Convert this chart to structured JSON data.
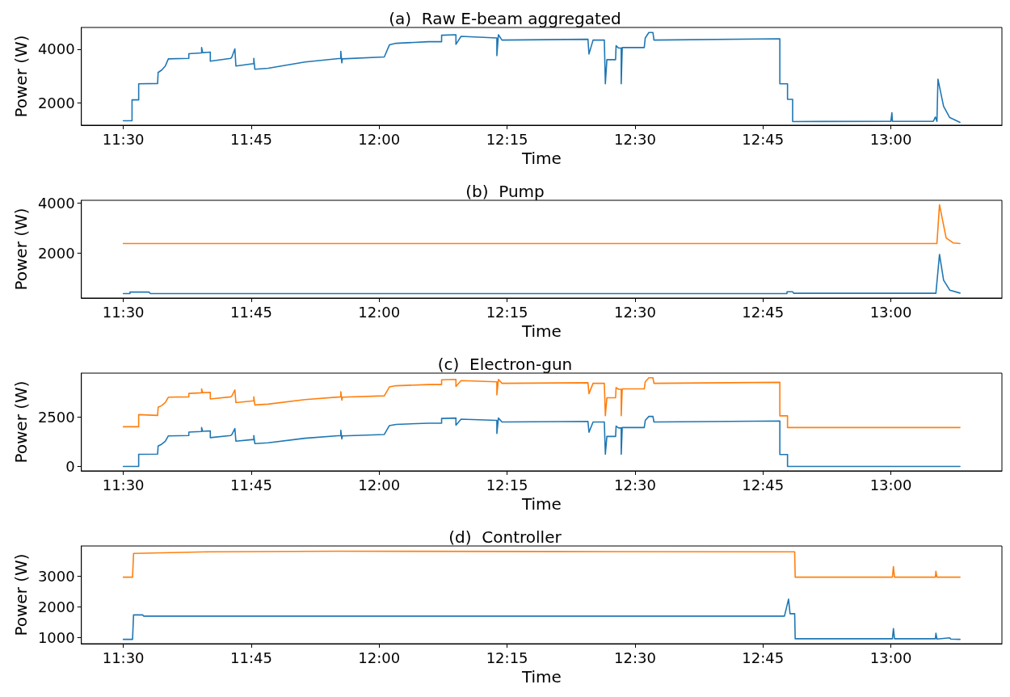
{
  "chart_data": [
    {
      "type": "line",
      "title": "(a)  Raw E-beam aggregated",
      "xlabel": "Time",
      "ylabel": "Power (W)",
      "xlim": [
        11.418,
        13.217
      ],
      "xticks": [
        {
          "value": 11.5,
          "label": "11:30"
        },
        {
          "value": 11.75,
          "label": "11:45"
        },
        {
          "value": 12,
          "label": "12:00"
        },
        {
          "value": 12.25,
          "label": "12:15"
        },
        {
          "value": 12.5,
          "label": "12:30"
        },
        {
          "value": 12.75,
          "label": "12:45"
        },
        {
          "value": 13,
          "label": "13:00"
        }
      ],
      "ylim": [
        1165,
        4810
      ],
      "yticks": [
        2000,
        4000
      ],
      "series": [
        {
          "color": "#1f77b4",
          "x": [
            11.5,
            11.517,
            11.517,
            11.53,
            11.53,
            11.567,
            11.568,
            11.575,
            11.582,
            11.588,
            11.628,
            11.628,
            11.653,
            11.653,
            11.655,
            11.67,
            11.67,
            11.71,
            11.712,
            11.718,
            11.72,
            11.755,
            11.755,
            11.757,
            11.783,
            11.855,
            11.925,
            11.925,
            11.927,
            11.928,
            12.01,
            12.02,
            12.033,
            12.097,
            12.122,
            12.122,
            12.15,
            12.15,
            12.16,
            12.23,
            12.23,
            12.233,
            12.24,
            12.408,
            12.41,
            12.418,
            12.44,
            12.442,
            12.445,
            12.462,
            12.463,
            12.468,
            12.473,
            12.473,
            12.475,
            12.518,
            12.52,
            12.527,
            12.535,
            12.537,
            12.783,
            12.783,
            12.798,
            12.798,
            12.808,
            12.808,
            13.0,
            13.002,
            13.003,
            13.083,
            13.087,
            13.09,
            13.092,
            13.103,
            13.115,
            13.135
          ],
          "values": [
            1330,
            1330,
            2110,
            2110,
            2710,
            2720,
            3130,
            3220,
            3370,
            3640,
            3660,
            3830,
            3860,
            4060,
            3870,
            3890,
            3550,
            3660,
            3700,
            4010,
            3370,
            3460,
            3660,
            3250,
            3290,
            3520,
            3660,
            3920,
            3490,
            3640,
            3710,
            4160,
            4220,
            4280,
            4280,
            4520,
            4540,
            4180,
            4480,
            4420,
            3760,
            4540,
            4340,
            4370,
            3820,
            4340,
            4340,
            2710,
            3610,
            3610,
            4130,
            4040,
            4040,
            2710,
            4060,
            4060,
            4420,
            4620,
            4620,
            4340,
            4390,
            2710,
            2710,
            2130,
            2130,
            1300,
            1310,
            1630,
            1310,
            1310,
            1470,
            1310,
            2880,
            1870,
            1450,
            1270
          ]
        }
      ]
    },
    {
      "type": "line",
      "title": "(b)  Pump",
      "xlabel": "Time",
      "ylabel": "Power (W)",
      "xlim": [
        11.418,
        13.217
      ],
      "xticks": [
        {
          "value": 11.5,
          "label": "11:30"
        },
        {
          "value": 11.75,
          "label": "11:45"
        },
        {
          "value": 12,
          "label": "12:00"
        },
        {
          "value": 12.25,
          "label": "12:15"
        },
        {
          "value": 12.5,
          "label": "12:30"
        },
        {
          "value": 12.75,
          "label": "12:45"
        },
        {
          "value": 13,
          "label": "13:00"
        }
      ],
      "ylim": [
        180,
        4120
      ],
      "yticks": [
        2000,
        4000
      ],
      "series": [
        {
          "color": "#1f77b4",
          "x": [
            11.5,
            11.513,
            11.513,
            11.55,
            11.553,
            12.797,
            12.797,
            12.808,
            12.81,
            13.088,
            13.095,
            13.103,
            13.115,
            13.135
          ],
          "values": [
            360,
            360,
            420,
            420,
            360,
            360,
            430,
            430,
            370,
            370,
            1940,
            900,
            500,
            380
          ]
        },
        {
          "color": "#ff7f0e",
          "x": [
            11.5,
            13.09,
            13.095,
            13.108,
            13.122,
            13.135
          ],
          "values": [
            2380,
            2380,
            3940,
            2600,
            2400,
            2380
          ]
        }
      ]
    },
    {
      "type": "line",
      "title": "(c)  Electron-gun",
      "xlabel": "Time",
      "ylabel": "Power (W)",
      "xlim": [
        11.418,
        13.217
      ],
      "xticks": [
        {
          "value": 11.5,
          "label": "11:30"
        },
        {
          "value": 11.75,
          "label": "11:45"
        },
        {
          "value": 12,
          "label": "12:00"
        },
        {
          "value": 12.25,
          "label": "12:15"
        },
        {
          "value": 12.5,
          "label": "12:30"
        },
        {
          "value": 12.75,
          "label": "12:45"
        },
        {
          "value": 13,
          "label": "13:00"
        }
      ],
      "ylim": [
        -225,
        4705
      ],
      "yticks": [
        0,
        2500
      ],
      "series": [
        {
          "color": "#1f77b4",
          "x": [
            11.5,
            11.53,
            11.53,
            11.567,
            11.568,
            11.575,
            11.582,
            11.588,
            11.628,
            11.628,
            11.653,
            11.653,
            11.655,
            11.67,
            11.67,
            11.71,
            11.712,
            11.718,
            11.72,
            11.755,
            11.755,
            11.757,
            11.783,
            11.855,
            11.925,
            11.925,
            11.927,
            11.928,
            12.01,
            12.02,
            12.033,
            12.097,
            12.122,
            12.122,
            12.15,
            12.15,
            12.16,
            12.23,
            12.23,
            12.233,
            12.24,
            12.408,
            12.41,
            12.418,
            12.44,
            12.442,
            12.445,
            12.462,
            12.463,
            12.468,
            12.473,
            12.473,
            12.475,
            12.518,
            12.52,
            12.527,
            12.535,
            12.537,
            12.783,
            12.783,
            12.798,
            12.798,
            13.135
          ],
          "values": [
            0,
            0,
            610,
            620,
            1030,
            1120,
            1270,
            1540,
            1560,
            1730,
            1760,
            1960,
            1770,
            1790,
            1450,
            1560,
            1600,
            1910,
            1270,
            1360,
            1560,
            1150,
            1190,
            1420,
            1560,
            1820,
            1390,
            1540,
            1610,
            2060,
            2120,
            2180,
            2180,
            2420,
            2440,
            2080,
            2380,
            2320,
            1660,
            2440,
            2240,
            2270,
            1720,
            2240,
            2240,
            610,
            1510,
            1510,
            2030,
            1940,
            1940,
            610,
            1960,
            1960,
            2320,
            2520,
            2520,
            2240,
            2290,
            600,
            600,
            0,
            0
          ]
        },
        {
          "color": "#ff7f0e",
          "x": [
            11.5,
            11.53,
            11.53,
            11.567,
            11.568,
            11.575,
            11.582,
            11.588,
            11.628,
            11.628,
            11.653,
            11.653,
            11.655,
            11.67,
            11.67,
            11.71,
            11.712,
            11.718,
            11.72,
            11.755,
            11.755,
            11.757,
            11.783,
            11.855,
            11.925,
            11.925,
            11.927,
            11.928,
            12.01,
            12.02,
            12.033,
            12.097,
            12.122,
            12.122,
            12.15,
            12.15,
            12.16,
            12.23,
            12.23,
            12.233,
            12.24,
            12.408,
            12.41,
            12.418,
            12.44,
            12.442,
            12.445,
            12.462,
            12.463,
            12.468,
            12.473,
            12.473,
            12.475,
            12.518,
            12.52,
            12.527,
            12.535,
            12.537,
            12.783,
            12.783,
            12.798,
            12.798,
            13.135
          ],
          "values": [
            2000,
            2000,
            2610,
            2570,
            2980,
            3070,
            3220,
            3490,
            3510,
            3680,
            3710,
            3910,
            3720,
            3740,
            3400,
            3510,
            3550,
            3860,
            3220,
            3310,
            3510,
            3100,
            3140,
            3370,
            3510,
            3770,
            3340,
            3490,
            3560,
            4010,
            4070,
            4130,
            4130,
            4370,
            4390,
            4030,
            4330,
            4270,
            3610,
            4390,
            4190,
            4220,
            3670,
            4190,
            4190,
            2560,
            3460,
            3460,
            3980,
            3890,
            3890,
            2560,
            3910,
            3910,
            4270,
            4470,
            4470,
            4190,
            4240,
            2550,
            2550,
            1960,
            1960
          ]
        }
      ]
    },
    {
      "type": "line",
      "title": "(d)  Controller",
      "xlabel": "Time",
      "ylabel": "Power (W)",
      "xlim": [
        11.418,
        13.217
      ],
      "xticks": [
        {
          "value": 11.5,
          "label": "11:30"
        },
        {
          "value": 11.75,
          "label": "11:45"
        },
        {
          "value": 12,
          "label": "12:00"
        },
        {
          "value": 12.25,
          "label": "12:15"
        },
        {
          "value": 12.5,
          "label": "12:30"
        },
        {
          "value": 12.75,
          "label": "12:45"
        },
        {
          "value": 13,
          "label": "13:00"
        }
      ],
      "ylim": [
        810,
        3970
      ],
      "yticks": [
        1000,
        2000,
        3000
      ],
      "series": [
        {
          "color": "#1f77b4",
          "x": [
            11.5,
            11.518,
            11.52,
            11.538,
            11.54,
            12.792,
            12.8,
            12.803,
            12.812,
            12.813,
            13.003,
            13.005,
            13.007,
            13.087,
            13.088,
            13.09,
            13.115,
            13.117,
            13.135
          ],
          "values": [
            950,
            950,
            1740,
            1740,
            1700,
            1700,
            2250,
            1780,
            1780,
            970,
            970,
            1300,
            970,
            970,
            1150,
            960,
            1000,
            960,
            950
          ]
        },
        {
          "color": "#ff7f0e",
          "x": [
            11.5,
            11.518,
            11.52,
            11.667,
            11.917,
            12.333,
            12.792,
            12.812,
            12.813,
            13.003,
            13.005,
            13.007,
            13.087,
            13.088,
            13.09,
            13.135
          ],
          "values": [
            2960,
            2960,
            3730,
            3780,
            3800,
            3790,
            3780,
            3780,
            2960,
            2960,
            3300,
            2960,
            2960,
            3150,
            2960,
            2960
          ]
        }
      ]
    }
  ]
}
